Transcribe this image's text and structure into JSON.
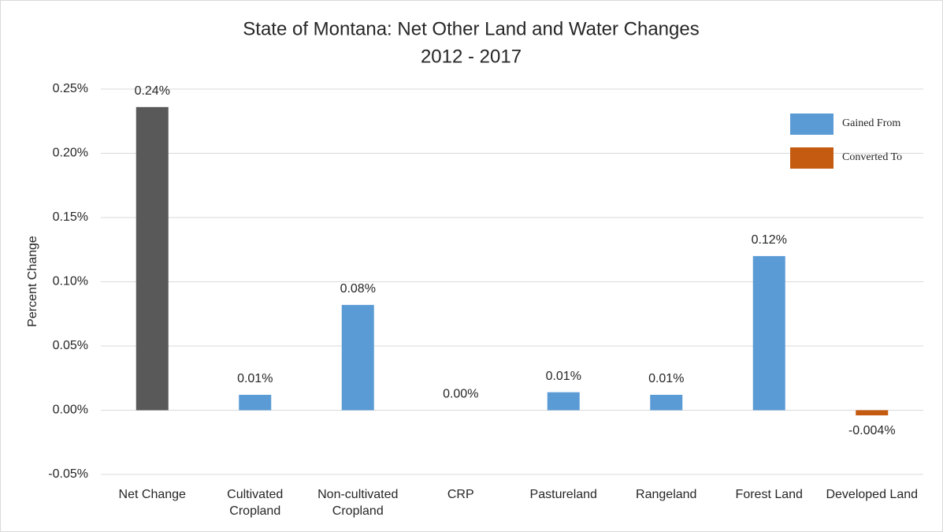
{
  "chart_data": {
    "type": "bar",
    "title": "State of Montana: Net Other Land and Water Changes",
    "subtitle": "2012 - 2017",
    "y_label": "Percent Change",
    "categories": [
      "Net Change",
      "Cultivated Cropland",
      "Non-cultivated Cropland",
      "CRP",
      "Pastureland",
      "Rangeland",
      "Forest Land",
      "Developed Land"
    ],
    "values": [
      0.236,
      0.012,
      0.082,
      0,
      0.014,
      0.012,
      0.12,
      -0.004
    ],
    "value_labels": [
      "0.24%",
      "0.01%",
      "0.08%",
      "0.00%",
      "0.01%",
      "0.01%",
      "0.12%",
      "-0.004%"
    ],
    "colors": [
      "#595959",
      "#5b9bd5",
      "#5b9bd5",
      "#5b9bd5",
      "#5b9bd5",
      "#5b9bd5",
      "#5b9bd5",
      "#c55a11"
    ],
    "legend": [
      {
        "name": "Gained From",
        "color": "#5b9bd5"
      },
      {
        "name": "Converted To",
        "color": "#c55a11"
      }
    ],
    "ylim": [
      -0.05,
      0.25
    ],
    "yticks": [
      {
        "value": -0.05,
        "label": "-0.05%"
      },
      {
        "value": 0,
        "label": "0.00%"
      },
      {
        "value": 0.05,
        "label": "0.05%"
      },
      {
        "value": 0.1,
        "label": "0.10%"
      },
      {
        "value": 0.15,
        "label": "0.15%"
      },
      {
        "value": 0.2,
        "label": "0.20%"
      },
      {
        "value": 0.25,
        "label": "0.25%"
      }
    ],
    "grid": true
  }
}
